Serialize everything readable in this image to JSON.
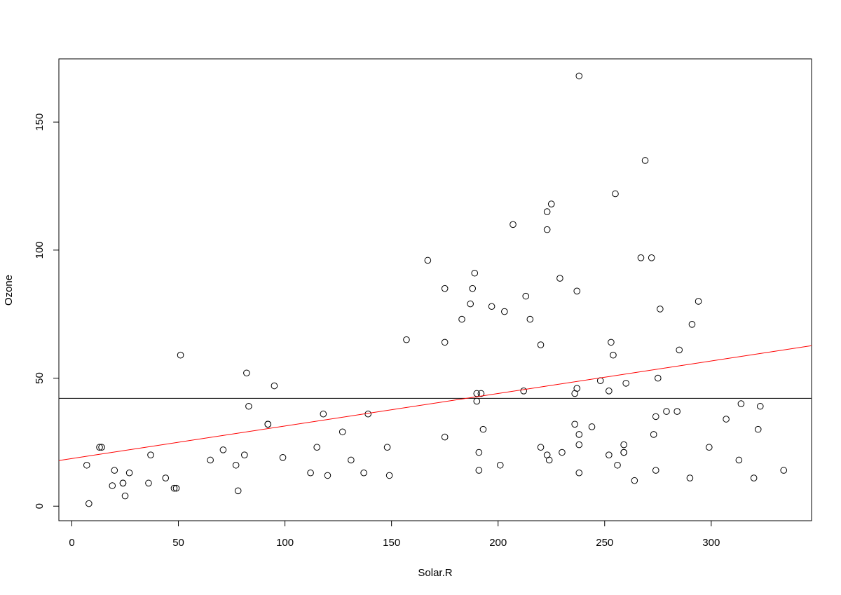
{
  "chart_data": {
    "type": "scatter",
    "x_label": "Solar.R",
    "y_label": "Ozone",
    "x": [
      7,
      8,
      13,
      14,
      20,
      19,
      24,
      24,
      25,
      27,
      36,
      37,
      44,
      48,
      49,
      51,
      65,
      71,
      77,
      78,
      81,
      82,
      83,
      92,
      92,
      95,
      99,
      112,
      115,
      118,
      120,
      127,
      131,
      137,
      139,
      148,
      149,
      157,
      167,
      175,
      175,
      175,
      183,
      187,
      188,
      189,
      190,
      190,
      192,
      191,
      191,
      193,
      197,
      201,
      203,
      207,
      212,
      213,
      215,
      220,
      220,
      223,
      223,
      223,
      224,
      225,
      229,
      230,
      236,
      236,
      237,
      237,
      238,
      238,
      238,
      238,
      244,
      248,
      252,
      252,
      253,
      254,
      255,
      256,
      259,
      259,
      259,
      260,
      264,
      267,
      269,
      272,
      273,
      274,
      274,
      275,
      276,
      279,
      284,
      285,
      290,
      291,
      294,
      299,
      307,
      313,
      314,
      320,
      322,
      323,
      334
    ],
    "y": [
      16,
      1,
      23,
      23,
      14,
      8,
      9,
      9,
      4,
      13,
      9,
      20,
      11,
      7,
      7,
      59,
      18,
      22,
      16,
      6,
      20,
      52,
      39,
      32,
      32,
      47,
      19,
      13,
      23,
      36,
      12,
      29,
      18,
      13,
      36,
      23,
      12,
      65,
      96,
      85,
      64,
      27,
      73,
      79,
      85,
      91,
      44,
      41,
      44,
      21,
      14,
      30,
      78,
      16,
      76,
      110,
      45,
      82,
      73,
      63,
      23,
      115,
      108,
      20,
      18,
      118,
      89,
      21,
      32,
      44,
      46,
      84,
      168,
      28,
      24,
      13,
      31,
      49,
      45,
      20,
      64,
      59,
      122,
      16,
      24,
      21,
      21,
      48,
      10,
      97,
      135,
      97,
      28,
      35,
      14,
      50,
      77,
      37,
      37,
      61,
      11,
      71,
      80,
      23,
      34,
      18,
      40,
      11,
      30,
      39,
      14
    ],
    "color": "#000000",
    "hline": 42.1,
    "hline_color": "#000000",
    "fit": {
      "intercept": 18.6,
      "slope": 0.127,
      "color": "#ff0000"
    },
    "xlim": [
      -6.08,
      347.08
    ],
    "xticks": [
      0,
      50,
      100,
      150,
      200,
      250,
      300
    ],
    "ylim": [
      -5.68,
      174.68
    ],
    "yticks": [
      0,
      50,
      100,
      150
    ]
  }
}
